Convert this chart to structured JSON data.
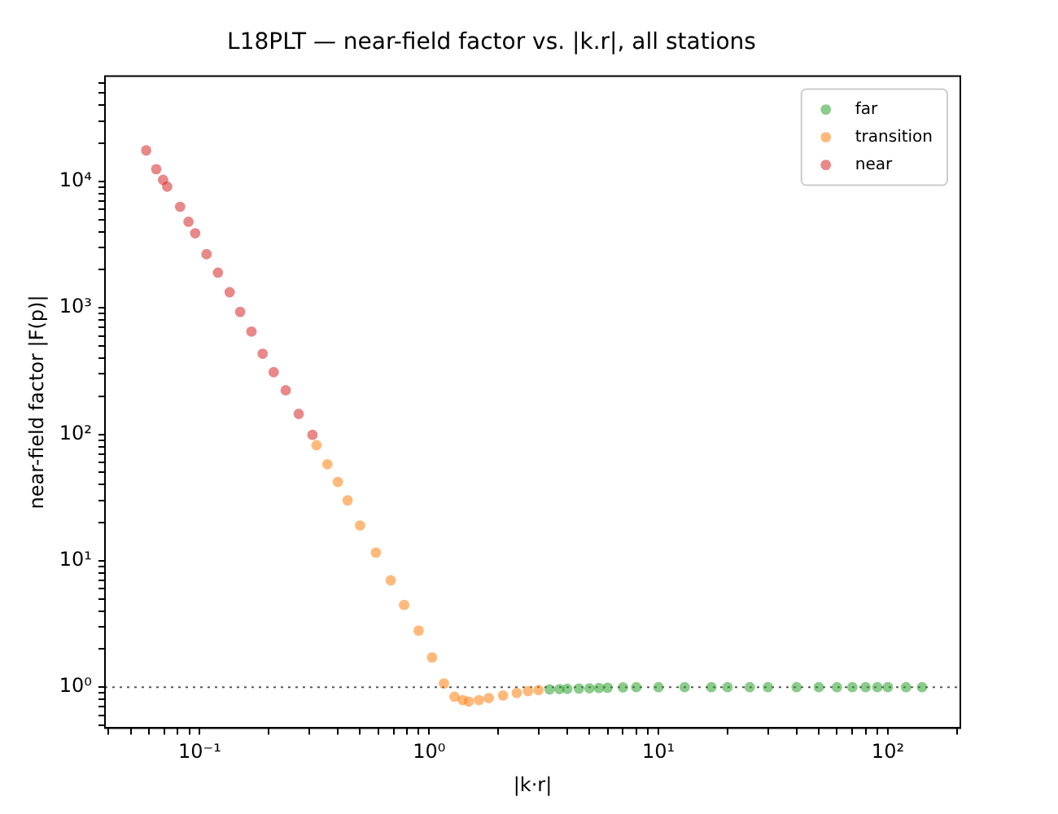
{
  "chart_data": {
    "type": "scatter",
    "title": "L18PLT — near-field factor vs. |k.r|, all stations",
    "xlabel": "|k·r|",
    "ylabel": "near-field factor |F(p)|",
    "log": "xy",
    "grid": false,
    "legend": "top right",
    "marker": "circle",
    "xlim": [
      0.0386,
      207
    ],
    "ylim": [
      0.475,
      68000
    ],
    "xticks": [
      {
        "value": 0.04,
        "label": null
      },
      {
        "value": 0.05,
        "label": null
      },
      {
        "value": 0.06,
        "label": null
      },
      {
        "value": 0.07,
        "label": null
      },
      {
        "value": 0.08,
        "label": null
      },
      {
        "value": 0.09,
        "label": null
      },
      {
        "value": 0.1,
        "label": "10⁻¹"
      },
      {
        "value": 0.2,
        "label": null
      },
      {
        "value": 0.3,
        "label": null
      },
      {
        "value": 0.4,
        "label": null
      },
      {
        "value": 0.5,
        "label": null
      },
      {
        "value": 0.6,
        "label": null
      },
      {
        "value": 0.7,
        "label": null
      },
      {
        "value": 0.8,
        "label": null
      },
      {
        "value": 0.9,
        "label": null
      },
      {
        "value": 1,
        "label": "10⁰"
      },
      {
        "value": 2,
        "label": null
      },
      {
        "value": 3,
        "label": null
      },
      {
        "value": 4,
        "label": null
      },
      {
        "value": 5,
        "label": null
      },
      {
        "value": 6,
        "label": null
      },
      {
        "value": 7,
        "label": null
      },
      {
        "value": 8,
        "label": null
      },
      {
        "value": 9,
        "label": null
      },
      {
        "value": 10,
        "label": "10¹"
      },
      {
        "value": 20,
        "label": null
      },
      {
        "value": 30,
        "label": null
      },
      {
        "value": 40,
        "label": null
      },
      {
        "value": 50,
        "label": null
      },
      {
        "value": 60,
        "label": null
      },
      {
        "value": 70,
        "label": null
      },
      {
        "value": 80,
        "label": null
      },
      {
        "value": 90,
        "label": null
      },
      {
        "value": 100,
        "label": "10²"
      },
      {
        "value": 200,
        "label": null
      }
    ],
    "yticks": [
      {
        "value": 0.5,
        "label": null
      },
      {
        "value": 0.6,
        "label": null
      },
      {
        "value": 0.7,
        "label": null
      },
      {
        "value": 0.8,
        "label": null
      },
      {
        "value": 0.9,
        "label": null
      },
      {
        "value": 1,
        "label": "10⁰"
      },
      {
        "value": 2,
        "label": null
      },
      {
        "value": 3,
        "label": null
      },
      {
        "value": 4,
        "label": null
      },
      {
        "value": 5,
        "label": null
      },
      {
        "value": 6,
        "label": null
      },
      {
        "value": 7,
        "label": null
      },
      {
        "value": 8,
        "label": null
      },
      {
        "value": 9,
        "label": null
      },
      {
        "value": 10,
        "label": "10¹"
      },
      {
        "value": 20,
        "label": null
      },
      {
        "value": 30,
        "label": null
      },
      {
        "value": 40,
        "label": null
      },
      {
        "value": 50,
        "label": null
      },
      {
        "value": 60,
        "label": null
      },
      {
        "value": 70,
        "label": null
      },
      {
        "value": 80,
        "label": null
      },
      {
        "value": 90,
        "label": null
      },
      {
        "value": 100,
        "label": "10²"
      },
      {
        "value": 200,
        "label": null
      },
      {
        "value": 300,
        "label": null
      },
      {
        "value": 400,
        "label": null
      },
      {
        "value": 500,
        "label": null
      },
      {
        "value": 600,
        "label": null
      },
      {
        "value": 700,
        "label": null
      },
      {
        "value": 800,
        "label": null
      },
      {
        "value": 900,
        "label": null
      },
      {
        "value": 1000,
        "label": "10³"
      },
      {
        "value": 2000,
        "label": null
      },
      {
        "value": 3000,
        "label": null
      },
      {
        "value": 4000,
        "label": null
      },
      {
        "value": 5000,
        "label": null
      },
      {
        "value": 6000,
        "label": null
      },
      {
        "value": 7000,
        "label": null
      },
      {
        "value": 8000,
        "label": null
      },
      {
        "value": 9000,
        "label": null
      },
      {
        "value": 10000,
        "label": "10⁴"
      },
      {
        "value": 20000,
        "label": null
      },
      {
        "value": 30000,
        "label": null
      },
      {
        "value": 40000,
        "label": null
      },
      {
        "value": 50000,
        "label": null
      },
      {
        "value": 60000,
        "label": null
      }
    ],
    "ref_lines": [
      {
        "axis": "y",
        "value": 1,
        "color": "#555555",
        "line_style": "dotted"
      }
    ],
    "series": [
      {
        "name": "far",
        "color": "#2ca02c",
        "x": [
          3.35,
          3.7,
          4,
          4.5,
          5,
          5.5,
          6,
          7,
          8,
          10,
          13,
          17,
          20,
          25,
          30,
          40,
          50,
          60,
          70,
          80,
          90,
          100,
          120,
          141
        ],
        "values": [
          0.96,
          0.965,
          0.97,
          0.975,
          0.98,
          0.985,
          0.99,
          0.995,
          1,
          1,
          1,
          1,
          1,
          1,
          1,
          1,
          1,
          1,
          1,
          1,
          1,
          1,
          1,
          1
        ]
      },
      {
        "name": "transition",
        "color": "#ff7f0e",
        "x": [
          0.323,
          0.36,
          0.4,
          0.441,
          0.5,
          0.586,
          0.68,
          0.778,
          0.9,
          1.03,
          1.16,
          1.29,
          1.4,
          1.49,
          1.65,
          1.82,
          2.1,
          2.41,
          2.7,
          3.0
        ],
        "values": [
          82,
          58,
          42,
          30,
          19,
          11.6,
          7,
          4.47,
          2.8,
          1.72,
          1.07,
          0.84,
          0.79,
          0.77,
          0.79,
          0.82,
          0.86,
          0.9,
          0.93,
          0.95
        ]
      },
      {
        "name": "near",
        "color": "#d62728",
        "x": [
          0.0584,
          0.0646,
          0.0692,
          0.0721,
          0.0821,
          0.0893,
          0.0955,
          0.107,
          0.12,
          0.135,
          0.15,
          0.168,
          0.188,
          0.21,
          0.237,
          0.27,
          0.31
        ],
        "values": [
          17600,
          12500,
          10300,
          9100,
          6300,
          4800,
          3890,
          2660,
          1900,
          1330,
          930,
          650,
          434,
          310,
          223,
          145,
          99
        ]
      }
    ]
  }
}
